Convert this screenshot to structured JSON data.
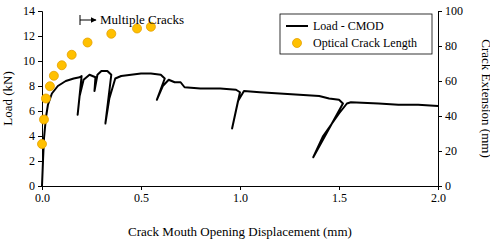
{
  "chart_data": {
    "type": "line",
    "x_label": "Crack Mouth Opening Displacement (mm)",
    "y_label": "Load (kN)",
    "y2_label": "Crack Extension (mm)",
    "annotation": "Multiple Cracks",
    "xlim": [
      0,
      2
    ],
    "xticks": [
      {
        "value": 0,
        "label": "0.0"
      },
      0.5,
      {
        "value": 1,
        "label": "1.0"
      },
      1.5,
      {
        "value": 2,
        "label": "2.0"
      }
    ],
    "ylim": [
      0,
      14
    ],
    "yticks": [
      0,
      2,
      4,
      6,
      8,
      10,
      12,
      14
    ],
    "y2lim": [
      0,
      100
    ],
    "y2ticks": [
      0,
      20,
      40,
      60,
      80,
      100
    ],
    "legend": "upper right",
    "series": [
      {
        "name": "Load - CMOD",
        "type": "line",
        "color": "#000000",
        "line_style": "solid",
        "x": [
          0,
          0.005,
          0.01,
          0.02,
          0.03,
          0.05,
          0.08,
          0.12,
          0.16,
          0.19,
          0.2,
          0.18,
          0.19,
          0.21,
          0.24,
          0.27,
          0.265,
          0.28,
          0.3,
          0.33,
          0.35,
          0.32,
          0.34,
          0.37,
          0.4,
          0.45,
          0.5,
          0.55,
          0.6,
          0.62,
          0.58,
          0.61,
          0.64,
          0.67,
          0.7,
          0.72,
          0.8,
          0.9,
          0.98,
          1.0,
          0.96,
          0.99,
          1.02,
          1.1,
          1.2,
          1.3,
          1.4,
          1.45,
          1.5,
          1.52,
          1.37,
          1.42,
          1.5,
          1.54,
          1.56,
          1.7,
          1.8,
          1.9,
          2.0
        ],
        "values": [
          0,
          2,
          3.8,
          5.5,
          6.5,
          7.4,
          8.0,
          8.4,
          8.6,
          8.7,
          8.8,
          5.7,
          7.2,
          8.5,
          8.9,
          8.7,
          7.6,
          8.9,
          9.2,
          9.2,
          8.9,
          5.0,
          7.0,
          8.6,
          8.8,
          8.9,
          9.0,
          9.0,
          8.9,
          8.6,
          6.9,
          8.0,
          8.5,
          8.3,
          8.3,
          7.9,
          7.8,
          7.8,
          7.7,
          7.5,
          4.6,
          6.8,
          7.6,
          7.5,
          7.4,
          7.3,
          7.2,
          7.0,
          6.9,
          6.6,
          2.3,
          4.0,
          5.8,
          6.6,
          6.7,
          6.6,
          6.5,
          6.5,
          6.4
        ]
      },
      {
        "name": "Optical Crack Length",
        "type": "scatter",
        "axis": "y2",
        "color": "#ffc000",
        "marker": "circle",
        "x": [
          0,
          0.01,
          0.02,
          0.04,
          0.06,
          0.1,
          0.15,
          0.23,
          0.35,
          0.48,
          0.55
        ],
        "values": [
          24,
          38,
          50,
          57,
          63,
          69,
          75,
          82,
          87,
          90,
          91
        ]
      }
    ]
  }
}
